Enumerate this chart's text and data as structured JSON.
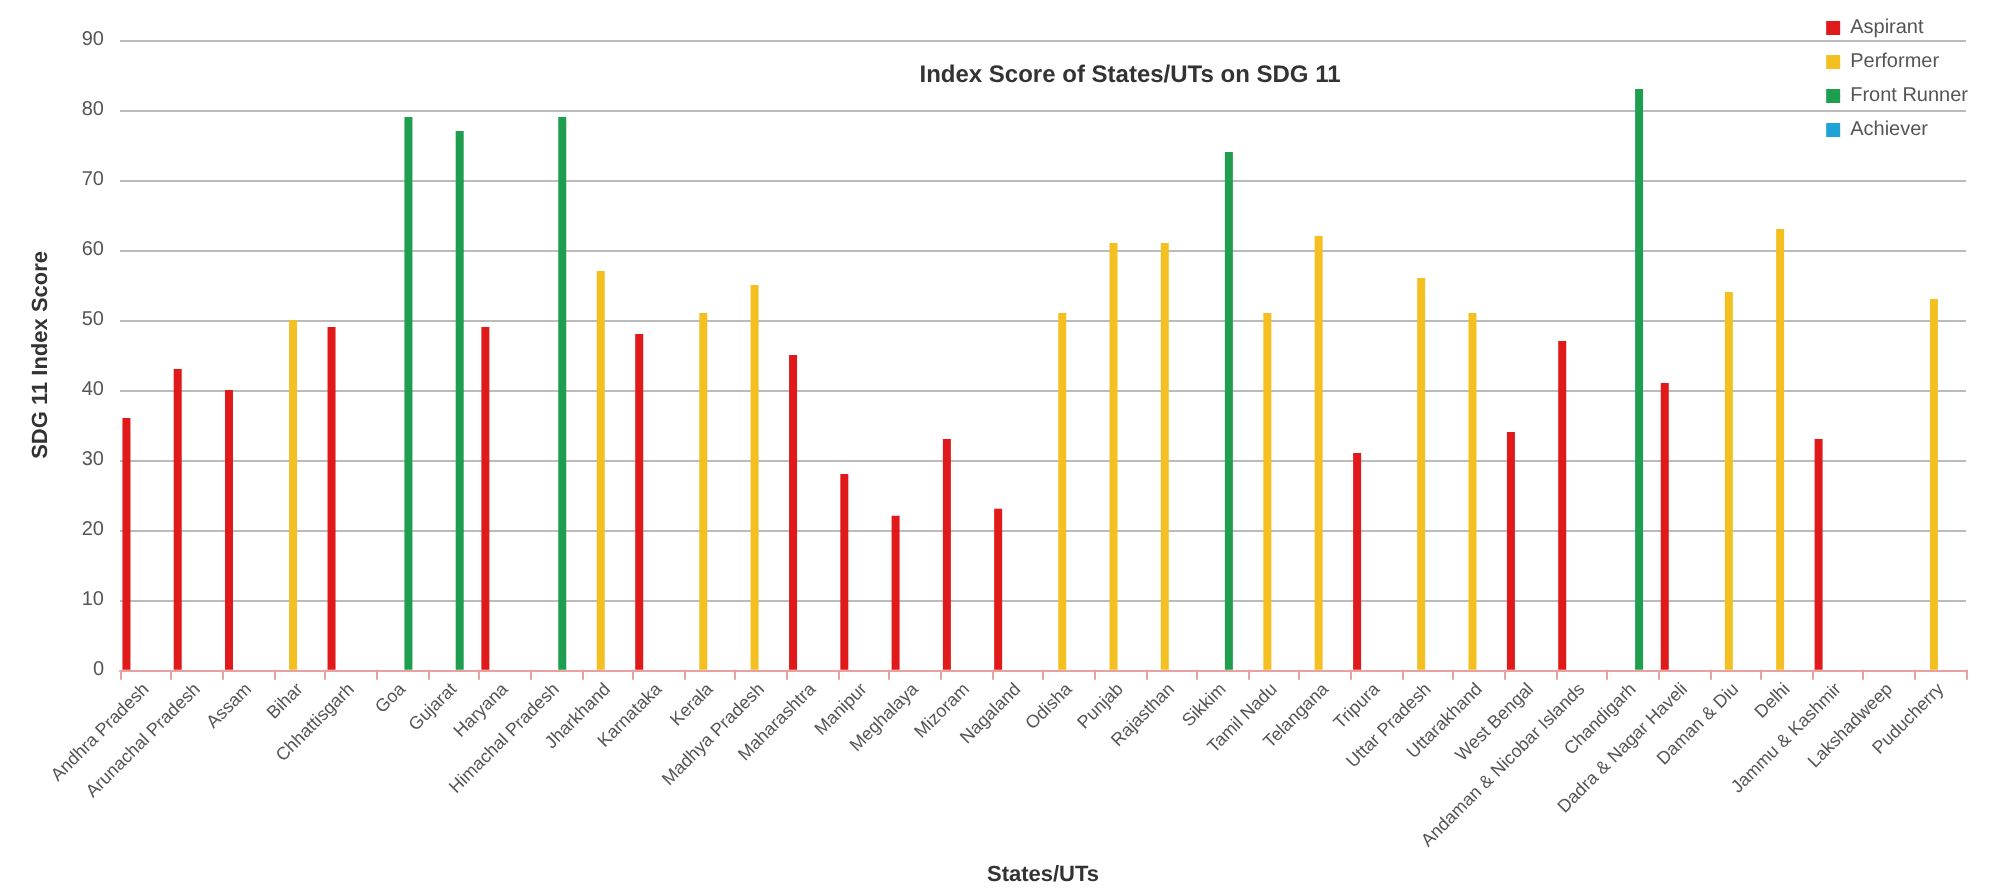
{
  "chart_data": {
    "type": "bar",
    "title": "Index Score of States/UTs on SDG 11",
    "xlabel": "States/UTs",
    "ylabel": "SDG 11 Index Score",
    "categories": [
      "Andhra Pradesh",
      "Arunachal Pradesh",
      "Assam",
      "Bihar",
      "Chhattisgarh",
      "Goa",
      "Gujarat",
      "Haryana",
      "Himachal Pradesh",
      "Jharkhand",
      "Karnataka",
      "Kerala",
      "Madhya Pradesh",
      "Maharashtra",
      "Manipur",
      "Meghalaya",
      "Mizoram",
      "Nagaland",
      "Odisha",
      "Punjab",
      "Rajasthan",
      "Sikkim",
      "Tamil Nadu",
      "Telangana",
      "Tripura",
      "Uttar Pradesh",
      "Uttarakhand",
      "West Bengal",
      "Andaman & Nicobar Islands",
      "Chandigarh",
      "Dadra & Nagar Haveli",
      "Daman & Diu",
      "Delhi",
      "Jammu & Kashmir",
      "Lakshadweep",
      "Puducherry"
    ],
    "series": [
      {
        "name": "Aspirant",
        "color": "#e01a1a",
        "values": [
          36,
          43,
          40,
          null,
          49,
          null,
          null,
          49,
          null,
          null,
          48,
          null,
          null,
          45,
          28,
          22,
          33,
          23,
          null,
          null,
          null,
          null,
          null,
          null,
          31,
          null,
          null,
          34,
          47,
          null,
          41,
          null,
          null,
          33,
          null,
          null
        ]
      },
      {
        "name": "Performer",
        "color": "#f4c021",
        "values": [
          null,
          null,
          null,
          50,
          null,
          null,
          null,
          null,
          null,
          57,
          null,
          51,
          55,
          null,
          null,
          null,
          null,
          null,
          51,
          61,
          61,
          null,
          51,
          62,
          null,
          56,
          51,
          null,
          null,
          null,
          null,
          54,
          63,
          null,
          null,
          53
        ]
      },
      {
        "name": "Front Runner",
        "color": "#1f9e50",
        "values": [
          null,
          null,
          null,
          null,
          null,
          79,
          77,
          null,
          79,
          null,
          null,
          null,
          null,
          null,
          null,
          null,
          null,
          null,
          null,
          null,
          null,
          74,
          null,
          null,
          null,
          null,
          null,
          null,
          null,
          83,
          null,
          null,
          null,
          null,
          null,
          null
        ]
      },
      {
        "name": "Achiever",
        "color": "#1fa3d6",
        "values": [
          null,
          null,
          null,
          null,
          null,
          null,
          null,
          null,
          null,
          null,
          null,
          null,
          null,
          null,
          null,
          null,
          null,
          null,
          null,
          null,
          null,
          null,
          null,
          null,
          null,
          null,
          null,
          null,
          null,
          null,
          null,
          null,
          null,
          null,
          null,
          null
        ]
      }
    ],
    "ylim": [
      0,
      90
    ],
    "yticks": [
      0,
      10,
      20,
      30,
      40,
      50,
      60,
      70,
      80,
      90
    ],
    "grid": "y",
    "legend": "top right"
  }
}
